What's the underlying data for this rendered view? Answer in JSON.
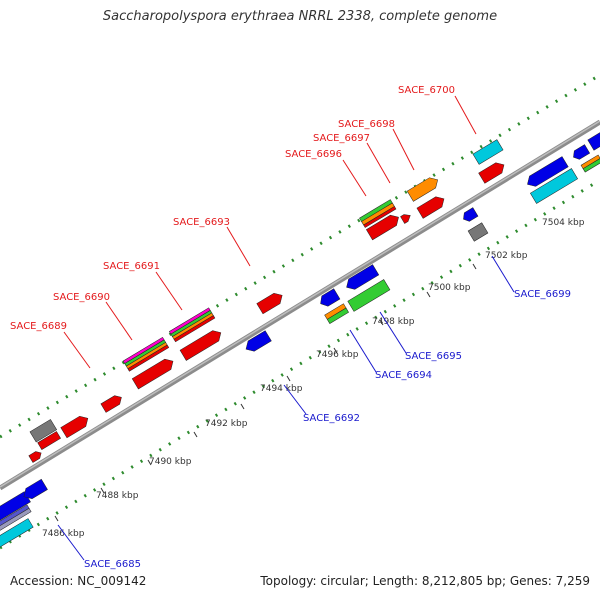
{
  "title": "Saccharopolyspora erythraea NRRL 2338, complete genome",
  "footer": {
    "accession": "Accession: NC_009142",
    "summary": "Topology: circular; Length: 8,212,805 bp; Genes: 7,259"
  },
  "colors": {
    "plus_label": "#e41a1c",
    "minus_label": "#1a1acd",
    "backbone": "#8c8c8c",
    "dots": "#2e8b2e",
    "gene_red": "#e60000",
    "gene_blue": "#0000e6",
    "gene_orange": "#ff8c00",
    "gene_green": "#33cc33",
    "gene_cyan": "#00c8dc",
    "gene_gray": "#777777"
  },
  "kbp_ticks": [
    "7486 kbp",
    "7488 kbp",
    "7490 kbp",
    "7492 kbp",
    "7494 kbp",
    "7496 kbp",
    "7498 kbp",
    "7500 kbp",
    "7502 kbp",
    "7504 kbp"
  ],
  "plus_labels": [
    "SACE_6689",
    "SACE_6690",
    "SACE_6691",
    "SACE_6693",
    "SACE_6696",
    "SACE_6697",
    "SACE_6698",
    "SACE_6700"
  ],
  "minus_labels": [
    "SACE_6685",
    "SACE_6692",
    "SACE_6694",
    "SACE_6695",
    "SACE_6699"
  ]
}
